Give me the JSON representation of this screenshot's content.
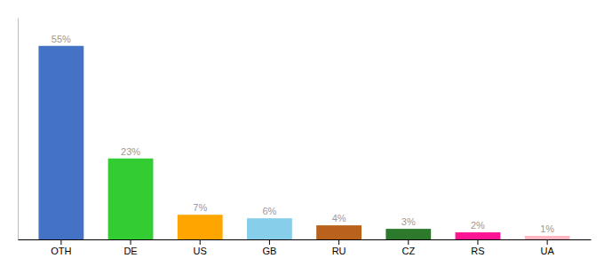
{
  "chart_data": {
    "type": "bar",
    "categories": [
      "OTH",
      "DE",
      "US",
      "GB",
      "RU",
      "CZ",
      "RS",
      "UA"
    ],
    "values": [
      55,
      23,
      7,
      6,
      4,
      3,
      2,
      1
    ],
    "value_labels": [
      "55%",
      "23%",
      "7%",
      "6%",
      "4%",
      "3%",
      "2%",
      "1%"
    ],
    "colors": [
      "#4472C4",
      "#33CC33",
      "#FFA500",
      "#87CEEB",
      "#B8621B",
      "#2D7A2D",
      "#FF1493",
      "#FFB6C1"
    ],
    "ylim": [
      0,
      63
    ],
    "data_labels": true,
    "tick_labels": "x",
    "grid": false
  }
}
